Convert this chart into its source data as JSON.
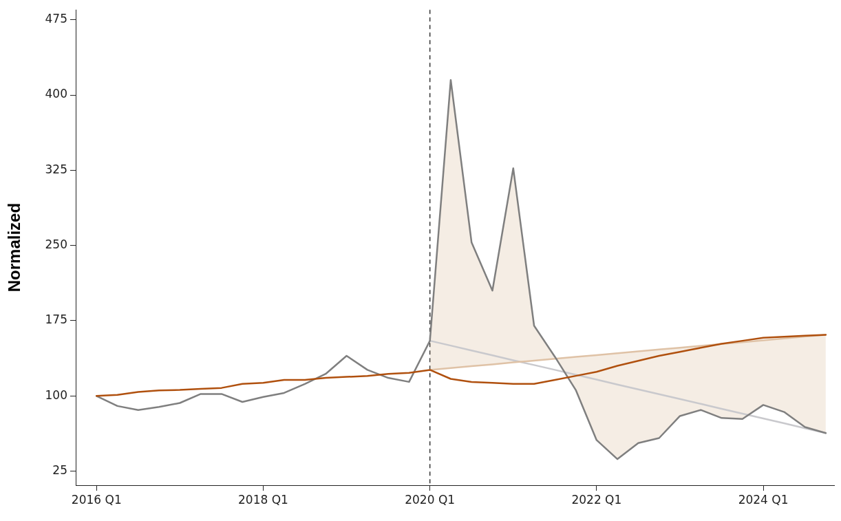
{
  "chart_data": {
    "type": "line",
    "ylabel": "Normalized",
    "categories": [
      "2016 Q1",
      null,
      null,
      null,
      null,
      null,
      null,
      null,
      "2018 Q1",
      null,
      null,
      null,
      null,
      null,
      null,
      null,
      "2020 Q1",
      null,
      null,
      null,
      null,
      null,
      null,
      null,
      "2022 Q1",
      null,
      null,
      null,
      null,
      null,
      null,
      null,
      "2024 Q1",
      null,
      null,
      null
    ],
    "series": [
      {
        "color": "#c9c9cd",
        "values": [
          null,
          null,
          null,
          null,
          null,
          null,
          null,
          null,
          null,
          null,
          null,
          null,
          null,
          null,
          null,
          null,
          155,
          150.2,
          145.3,
          140.5,
          135.6,
          130.8,
          126,
          121.1,
          116.3,
          111.4,
          106.6,
          101.7,
          96.9,
          92.1,
          87.2,
          82.4,
          77.5,
          72.7,
          67.8,
          63
        ]
      },
      {
        "color": "#dfc2a6",
        "values": [
          null,
          null,
          null,
          null,
          null,
          null,
          null,
          null,
          null,
          null,
          null,
          null,
          null,
          null,
          null,
          null,
          126,
          127.8,
          129.7,
          131.5,
          133.4,
          135.2,
          137.1,
          138.9,
          140.7,
          142.6,
          144.4,
          146.3,
          148.1,
          149.9,
          151.8,
          153.6,
          155.5,
          157.3,
          159.2,
          161
        ],
        "lower": [
          null,
          null,
          null,
          null,
          null,
          null,
          null,
          null,
          null,
          null,
          null,
          null,
          null,
          null,
          null,
          null,
          126,
          127.8,
          129.7,
          131.5,
          133.4,
          135.2,
          137.1,
          138.9,
          140.7,
          142.6,
          144.4,
          146.3,
          148.1,
          149.9,
          151.8,
          153.6,
          155.5,
          157.3,
          159.2,
          161
        ],
        "upper": [
          null,
          null,
          null,
          null,
          null,
          null,
          null,
          null,
          null,
          null,
          null,
          null,
          null,
          null,
          null,
          null,
          155,
          415,
          253,
          205,
          327,
          170,
          139,
          106,
          56,
          37,
          53,
          58,
          80,
          86,
          78,
          77,
          91,
          84,
          69,
          63
        ]
      },
      {
        "color": "#7f7f7f",
        "values": [
          100,
          90,
          86,
          89,
          93,
          102,
          102,
          94,
          99,
          103,
          112,
          122,
          140,
          126,
          118,
          114,
          155,
          415,
          253,
          205,
          327,
          170,
          139,
          106,
          56,
          37,
          53,
          58,
          80,
          86,
          78,
          77,
          91,
          84,
          69,
          63
        ]
      },
      {
        "color": "#b0500e",
        "values": [
          100,
          101,
          104,
          105.5,
          106,
          107,
          108,
          112,
          113,
          116,
          116,
          118,
          119,
          120,
          122,
          123,
          126,
          117,
          114,
          113,
          112,
          112,
          116,
          120,
          124,
          130,
          135,
          140,
          144,
          148,
          152,
          155,
          158,
          159,
          160,
          161
        ]
      }
    ],
    "ylim": [
      11,
      485
    ],
    "yticks": [
      25,
      100,
      175,
      250,
      325,
      400,
      475
    ],
    "ref_lines": [
      {
        "axis": "x",
        "value": "2020 Q1",
        "color": "#333333",
        "line_style": "dashed"
      }
    ],
    "grid": false,
    "legend": false,
    "marker": "none",
    "line_style": "solid"
  }
}
